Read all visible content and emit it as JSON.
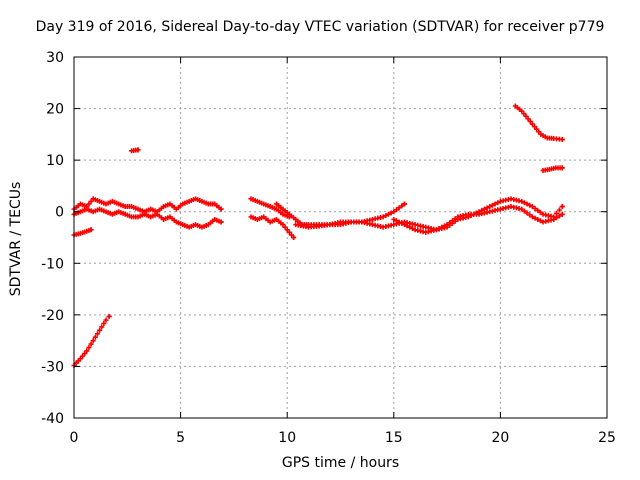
{
  "chart_data": {
    "type": "scatter",
    "title": "Day 319 of 2016, Sidereal Day-to-day VTEC variation (SDTVAR) for receiver p779",
    "xlabel": "GPS time / hours",
    "ylabel": "SDTVAR / TECUs",
    "xlim": [
      0,
      25
    ],
    "ylim": [
      -40,
      30
    ],
    "xticks": [
      0,
      5,
      10,
      15,
      20,
      25
    ],
    "yticks": [
      -40,
      -30,
      -20,
      -10,
      0,
      10,
      20,
      30
    ],
    "grid": true,
    "marker_color": "#ff0000",
    "series": [
      {
        "points": [
          [
            0,
            -29.8
          ],
          [
            0.3,
            -28.5
          ],
          [
            0.6,
            -27
          ],
          [
            0.9,
            -25
          ],
          [
            1.2,
            -23
          ],
          [
            1.5,
            -21
          ],
          [
            1.65,
            -20.3
          ]
        ]
      },
      {
        "points": [
          [
            0,
            -4.5
          ],
          [
            0.3,
            -4.2
          ],
          [
            0.6,
            -3.8
          ],
          [
            0.8,
            -3.5
          ]
        ]
      },
      {
        "points": [
          [
            2.7,
            11.8
          ],
          [
            3.0,
            12.0
          ]
        ]
      },
      {
        "points": [
          [
            0,
            0.5
          ],
          [
            0.3,
            1.5
          ],
          [
            0.6,
            1.0
          ],
          [
            0.9,
            2.5
          ],
          [
            1.2,
            2.0
          ],
          [
            1.5,
            1.5
          ],
          [
            1.8,
            2.0
          ],
          [
            2.1,
            1.5
          ],
          [
            2.4,
            1.0
          ],
          [
            2.7,
            1.0
          ],
          [
            3.0,
            0.5
          ],
          [
            3.3,
            0.0
          ],
          [
            3.6,
            0.5
          ],
          [
            3.9,
            0.0
          ],
          [
            4.2,
            1.0
          ],
          [
            4.5,
            1.5
          ],
          [
            4.8,
            0.5
          ],
          [
            5.1,
            1.5
          ],
          [
            5.4,
            2.0
          ],
          [
            5.7,
            2.5
          ],
          [
            6.0,
            2.0
          ],
          [
            6.3,
            1.5
          ],
          [
            6.6,
            1.5
          ],
          [
            6.9,
            0.5
          ]
        ]
      },
      {
        "points": [
          [
            0,
            -0.5
          ],
          [
            0.3,
            0.0
          ],
          [
            0.6,
            0.5
          ],
          [
            0.9,
            0.0
          ],
          [
            1.2,
            0.5
          ],
          [
            1.5,
            0.0
          ],
          [
            1.8,
            -0.5
          ],
          [
            2.1,
            0.0
          ],
          [
            2.4,
            -0.5
          ],
          [
            2.7,
            -1.0
          ],
          [
            3.0,
            -1.0
          ],
          [
            3.3,
            -0.5
          ],
          [
            3.6,
            -1.0
          ],
          [
            3.9,
            -0.5
          ],
          [
            4.2,
            -1.5
          ],
          [
            4.5,
            -1.0
          ],
          [
            4.8,
            -2.0
          ],
          [
            5.1,
            -2.5
          ],
          [
            5.4,
            -3.0
          ],
          [
            5.7,
            -2.5
          ],
          [
            6.0,
            -3.0
          ],
          [
            6.3,
            -2.5
          ],
          [
            6.6,
            -1.5
          ],
          [
            6.9,
            -2.0
          ]
        ]
      },
      {
        "points": [
          [
            8.3,
            2.5
          ],
          [
            8.6,
            2.0
          ],
          [
            8.9,
            1.5
          ],
          [
            9.2,
            1.0
          ],
          [
            9.5,
            0.5
          ],
          [
            9.8,
            -0.5
          ],
          [
            10.1,
            -1.0
          ]
        ]
      },
      {
        "points": [
          [
            8.3,
            -1.0
          ],
          [
            8.6,
            -1.5
          ],
          [
            8.9,
            -1.0
          ],
          [
            9.2,
            -2.0
          ],
          [
            9.5,
            -1.5
          ],
          [
            9.8,
            -2.5
          ],
          [
            10.1,
            -4.0
          ],
          [
            10.3,
            -5.0
          ]
        ]
      },
      {
        "points": [
          [
            9.5,
            1.5
          ],
          [
            9.8,
            0.5
          ],
          [
            10.1,
            -0.5
          ],
          [
            10.4,
            -1.5
          ],
          [
            10.7,
            -2.5
          ],
          [
            11.0,
            -2.5
          ],
          [
            11.5,
            -2.5
          ],
          [
            12.0,
            -2.5
          ],
          [
            12.5,
            -2.5
          ],
          [
            13.0,
            -2.0
          ],
          [
            13.5,
            -2.0
          ],
          [
            14.0,
            -1.5
          ],
          [
            14.5,
            -1.0
          ],
          [
            15.0,
            0.0
          ],
          [
            15.5,
            1.5
          ]
        ]
      },
      {
        "points": [
          [
            10.4,
            -2.5
          ],
          [
            11.0,
            -3.0
          ],
          [
            11.5,
            -2.8
          ],
          [
            12.0,
            -2.5
          ],
          [
            12.5,
            -2.0
          ],
          [
            13.0,
            -2.0
          ],
          [
            13.5,
            -2.0
          ],
          [
            14.0,
            -2.5
          ],
          [
            14.5,
            -3.0
          ],
          [
            15.0,
            -2.5
          ],
          [
            15.5,
            -2.0
          ],
          [
            16.0,
            -2.5
          ],
          [
            16.5,
            -3.0
          ],
          [
            17.0,
            -3.5
          ],
          [
            17.5,
            -2.5
          ],
          [
            18.0,
            -1.0
          ],
          [
            18.5,
            -0.5
          ],
          [
            19.0,
            -0.5
          ],
          [
            19.5,
            0.0
          ],
          [
            20.0,
            0.5
          ],
          [
            20.5,
            1.0
          ],
          [
            21.0,
            0.5
          ],
          [
            21.5,
            -1.0
          ],
          [
            22.0,
            -2.0
          ],
          [
            22.5,
            -1.5
          ],
          [
            22.9,
            -0.5
          ]
        ]
      },
      {
        "points": [
          [
            15.0,
            -1.5
          ],
          [
            15.5,
            -2.5
          ],
          [
            16.0,
            -3.5
          ],
          [
            16.5,
            -4.0
          ],
          [
            17.0,
            -3.5
          ],
          [
            17.5,
            -3.0
          ],
          [
            18.0,
            -1.5
          ],
          [
            18.5,
            -1.0
          ],
          [
            19.0,
            0.0
          ],
          [
            19.5,
            1.0
          ],
          [
            20.0,
            2.0
          ],
          [
            20.5,
            2.5
          ],
          [
            21.0,
            2.0
          ],
          [
            21.5,
            1.0
          ],
          [
            22.0,
            -0.5
          ],
          [
            22.5,
            -1.0
          ],
          [
            22.9,
            1.0
          ]
        ]
      },
      {
        "points": [
          [
            20.7,
            20.5
          ],
          [
            21.0,
            19.5
          ],
          [
            21.3,
            18.0
          ],
          [
            21.6,
            16.5
          ],
          [
            21.9,
            15.0
          ],
          [
            22.2,
            14.3
          ],
          [
            22.5,
            14.2
          ],
          [
            22.9,
            14.0
          ]
        ]
      },
      {
        "points": [
          [
            22.0,
            8.0
          ],
          [
            22.3,
            8.2
          ],
          [
            22.6,
            8.5
          ],
          [
            22.9,
            8.5
          ]
        ]
      }
    ]
  }
}
